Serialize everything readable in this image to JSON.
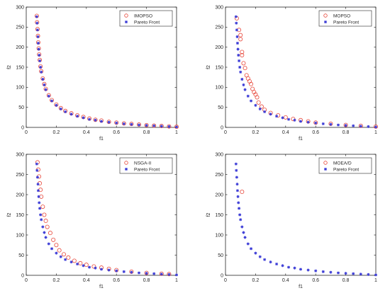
{
  "chart_data": [
    {
      "type": "scatter",
      "xlabel": "f1",
      "ylabel": "f2",
      "xlim": [
        0,
        1
      ],
      "ylim": [
        0,
        300
      ],
      "xticks": [
        "0",
        "0.2",
        "0.4",
        "0.6",
        "0.8",
        "1"
      ],
      "yticks": [
        "0",
        "50",
        "100",
        "150",
        "200",
        "250",
        "300"
      ],
      "legend_position": "top-right",
      "series": [
        {
          "name": "IMOPSO",
          "marker": "circle",
          "color": "#e8473a",
          "x": [
            0.07,
            0.072,
            0.075,
            0.078,
            0.08,
            0.083,
            0.086,
            0.09,
            0.095,
            0.1,
            0.11,
            0.12,
            0.13,
            0.15,
            0.17,
            0.2,
            0.23,
            0.26,
            0.3,
            0.34,
            0.38,
            0.42,
            0.46,
            0.5,
            0.55,
            0.6,
            0.65,
            0.7,
            0.75,
            0.8,
            0.85,
            0.9,
            0.95,
            1.0
          ],
          "y": [
            278,
            262,
            245,
            228,
            212,
            197,
            182,
            168,
            152,
            140,
            122,
            108,
            96,
            80,
            68,
            57,
            48,
            41,
            35,
            30,
            26,
            22,
            19,
            17,
            14,
            12,
            10,
            8.5,
            7,
            5.5,
            4.5,
            3.5,
            2.5,
            1.5
          ]
        },
        {
          "name": "Pareto Front",
          "marker": "asterisk",
          "color": "#3b3bd6",
          "x": [
            0.07,
            0.072,
            0.075,
            0.078,
            0.08,
            0.083,
            0.086,
            0.09,
            0.095,
            0.1,
            0.11,
            0.12,
            0.13,
            0.15,
            0.17,
            0.2,
            0.23,
            0.26,
            0.3,
            0.34,
            0.38,
            0.42,
            0.46,
            0.5,
            0.55,
            0.6,
            0.65,
            0.7,
            0.75,
            0.8,
            0.85,
            0.9,
            0.95,
            1.0
          ],
          "y": [
            276,
            260,
            243,
            226,
            210,
            195,
            180,
            166,
            150,
            138,
            120,
            106,
            94,
            78,
            66,
            55,
            46,
            39,
            33,
            28,
            24,
            20,
            18,
            15,
            13,
            11,
            9,
            7.5,
            6,
            5,
            4,
            3,
            2,
            1
          ]
        }
      ]
    },
    {
      "type": "scatter",
      "xlabel": "f1",
      "ylabel": "f2",
      "xlim": [
        0,
        1
      ],
      "ylim": [
        0,
        300
      ],
      "xticks": [
        "0",
        "0.2",
        "0.4",
        "0.6",
        "0.8",
        "1"
      ],
      "yticks": [
        "0",
        "50",
        "100",
        "150",
        "200",
        "250",
        "300"
      ],
      "legend_position": "top-right",
      "series": [
        {
          "name": "MOPSO",
          "marker": "circle",
          "color": "#e8473a",
          "x": [
            0.075,
            0.09,
            0.1,
            0.1,
            0.11,
            0.11,
            0.12,
            0.13,
            0.14,
            0.15,
            0.16,
            0.17,
            0.18,
            0.19,
            0.2,
            0.21,
            0.22,
            0.24,
            0.26,
            0.3,
            0.35,
            0.4,
            0.45,
            0.5,
            0.55,
            0.6,
            0.7,
            0.8,
            0.9,
            1.0
          ],
          "y": [
            272,
            243,
            230,
            220,
            188,
            180,
            160,
            148,
            130,
            122,
            115,
            108,
            96,
            88,
            82,
            75,
            62,
            52,
            44,
            36,
            30,
            25,
            21,
            18,
            15,
            12,
            9,
            6,
            4,
            2
          ]
        },
        {
          "name": "Pareto Front",
          "marker": "asterisk",
          "color": "#3b3bd6",
          "x": [
            0.07,
            0.072,
            0.075,
            0.078,
            0.08,
            0.083,
            0.086,
            0.09,
            0.095,
            0.1,
            0.11,
            0.12,
            0.13,
            0.15,
            0.17,
            0.2,
            0.23,
            0.26,
            0.3,
            0.34,
            0.38,
            0.42,
            0.46,
            0.5,
            0.55,
            0.6,
            0.65,
            0.7,
            0.75,
            0.8,
            0.85,
            0.9,
            0.95,
            1.0
          ],
          "y": [
            276,
            260,
            243,
            226,
            210,
            195,
            180,
            166,
            150,
            138,
            120,
            106,
            94,
            78,
            66,
            55,
            46,
            39,
            33,
            28,
            24,
            20,
            18,
            15,
            13,
            11,
            9,
            7.5,
            6,
            5,
            4,
            3,
            2,
            1
          ]
        }
      ]
    },
    {
      "type": "scatter",
      "xlabel": "f1",
      "ylabel": "f2",
      "xlim": [
        0,
        1
      ],
      "ylim": [
        0,
        300
      ],
      "xticks": [
        "0",
        "0.2",
        "0.4",
        "0.6",
        "0.8",
        "1"
      ],
      "yticks": [
        "0",
        "50",
        "100",
        "150",
        "200",
        "250",
        "300"
      ],
      "legend_position": "top-right",
      "series": [
        {
          "name": "NSGA-II",
          "marker": "circle",
          "color": "#e8473a",
          "x": [
            0.075,
            0.08,
            0.085,
            0.09,
            0.095,
            0.1,
            0.11,
            0.12,
            0.13,
            0.14,
            0.16,
            0.18,
            0.2,
            0.22,
            0.25,
            0.28,
            0.32,
            0.36,
            0.4,
            0.45,
            0.5,
            0.55,
            0.6,
            0.7,
            0.8,
            0.9,
            0.95
          ],
          "y": [
            280,
            262,
            245,
            228,
            212,
            195,
            170,
            150,
            135,
            120,
            105,
            88,
            75,
            62,
            52,
            44,
            36,
            30,
            26,
            22,
            19,
            16,
            13,
            9,
            6,
            4,
            3
          ]
        },
        {
          "name": "Pareto Front",
          "marker": "asterisk",
          "color": "#3b3bd6",
          "x": [
            0.07,
            0.072,
            0.075,
            0.078,
            0.08,
            0.083,
            0.086,
            0.09,
            0.095,
            0.1,
            0.11,
            0.12,
            0.13,
            0.15,
            0.17,
            0.2,
            0.23,
            0.26,
            0.3,
            0.34,
            0.38,
            0.42,
            0.46,
            0.5,
            0.55,
            0.6,
            0.65,
            0.7,
            0.75,
            0.8,
            0.85,
            0.9,
            0.95,
            1.0
          ],
          "y": [
            276,
            260,
            243,
            226,
            210,
            195,
            180,
            166,
            150,
            138,
            120,
            106,
            94,
            78,
            66,
            55,
            46,
            39,
            33,
            28,
            24,
            20,
            18,
            15,
            13,
            11,
            9,
            7.5,
            6,
            5,
            4,
            3,
            2,
            1
          ]
        }
      ]
    },
    {
      "type": "scatter",
      "xlabel": "f1",
      "ylabel": "f2",
      "xlim": [
        0,
        1
      ],
      "ylim": [
        0,
        300
      ],
      "xticks": [
        "0",
        "0.2",
        "0.4",
        "0.6",
        "0.8",
        "1"
      ],
      "yticks": [
        "0",
        "50",
        "100",
        "150",
        "200",
        "250",
        "300"
      ],
      "legend_position": "top-right",
      "series": [
        {
          "name": "MOEA/D",
          "marker": "circle",
          "color": "#e8473a",
          "x": [
            0.11
          ],
          "y": [
            207
          ]
        },
        {
          "name": "Pareto Front",
          "marker": "asterisk",
          "color": "#3b3bd6",
          "x": [
            0.07,
            0.072,
            0.075,
            0.078,
            0.08,
            0.083,
            0.086,
            0.09,
            0.095,
            0.1,
            0.11,
            0.12,
            0.13,
            0.15,
            0.17,
            0.2,
            0.23,
            0.26,
            0.3,
            0.34,
            0.38,
            0.42,
            0.46,
            0.5,
            0.55,
            0.6,
            0.65,
            0.7,
            0.75,
            0.8,
            0.85,
            0.9,
            0.95,
            1.0
          ],
          "y": [
            276,
            260,
            243,
            226,
            210,
            195,
            180,
            166,
            150,
            138,
            120,
            106,
            94,
            78,
            66,
            55,
            46,
            39,
            33,
            28,
            24,
            20,
            18,
            15,
            13,
            11,
            9,
            7.5,
            6,
            5,
            4,
            3,
            2,
            1
          ]
        }
      ]
    }
  ]
}
